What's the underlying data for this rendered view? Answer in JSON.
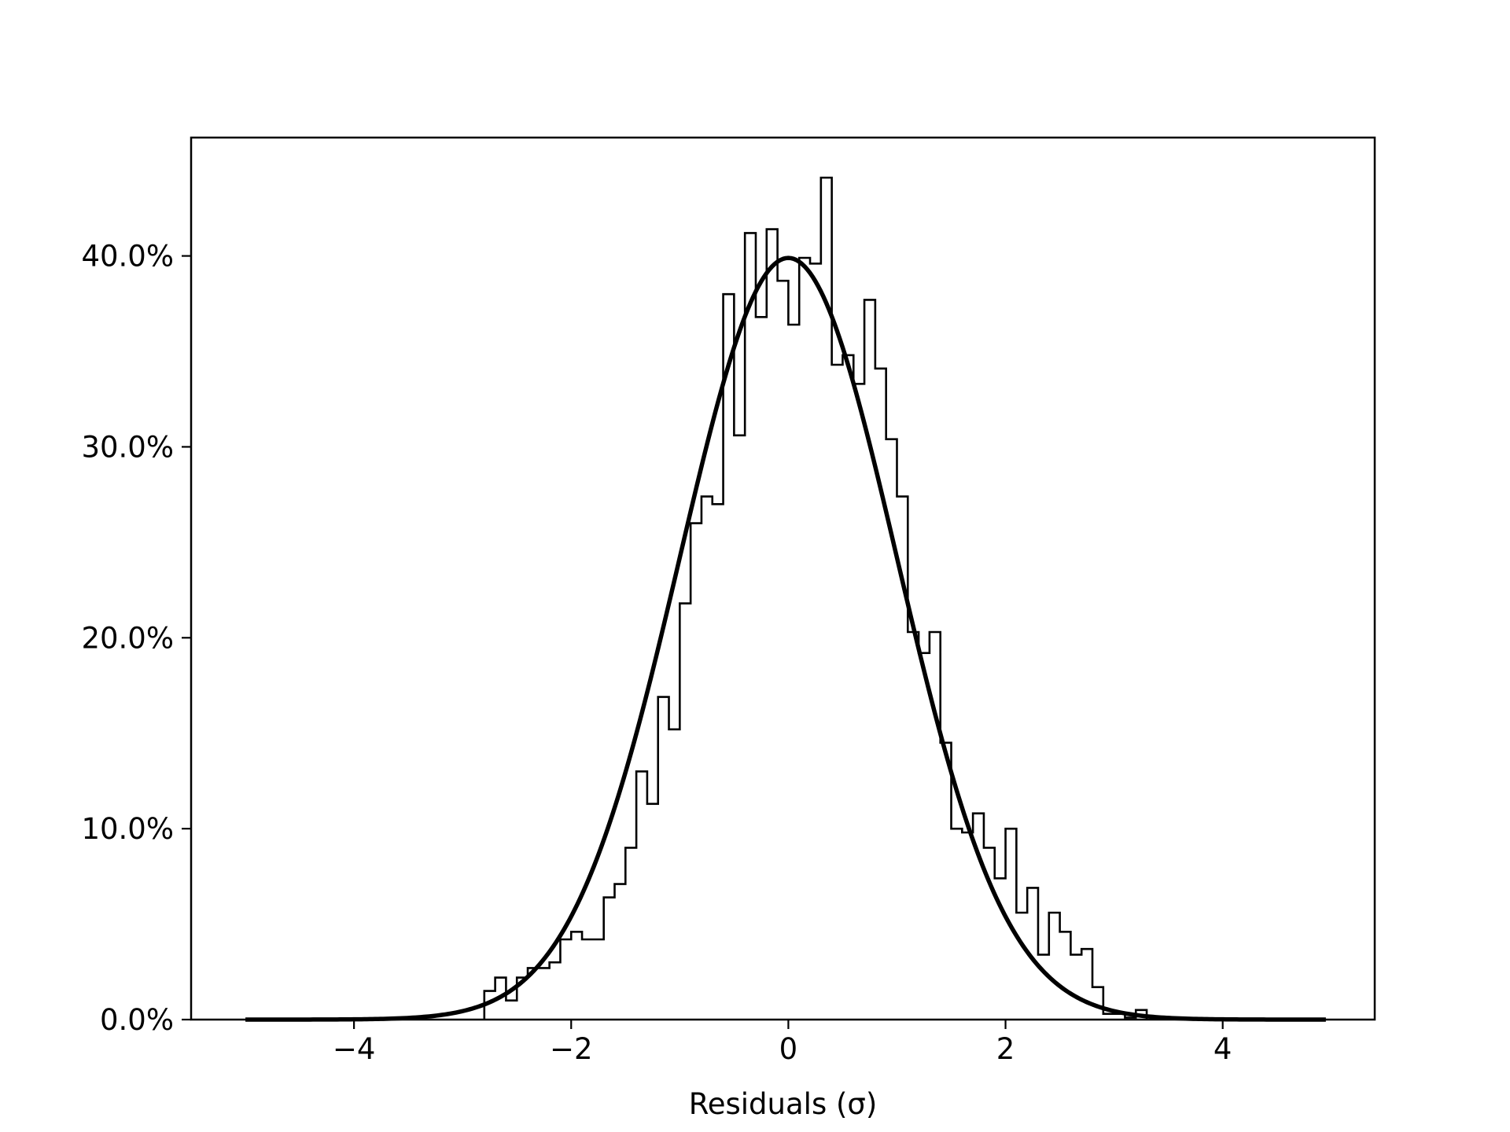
{
  "chart_data": {
    "type": "histogram",
    "title": "",
    "xlabel": "Residuals (σ)",
    "ylabel": "",
    "xlim": [
      -5.5,
      5.4
    ],
    "ylim": [
      0,
      0.462
    ],
    "grid": false,
    "legend": "none",
    "x_ticks": [
      {
        "value": -4,
        "label": "−4"
      },
      {
        "value": -2,
        "label": "−2"
      },
      {
        "value": 0,
        "label": "0"
      },
      {
        "value": 2,
        "label": "2"
      },
      {
        "value": 4,
        "label": "4"
      }
    ],
    "y_ticks": [
      {
        "value": 0.0,
        "label": "0.0%"
      },
      {
        "value": 0.1,
        "label": "10.0%"
      },
      {
        "value": 0.2,
        "label": "20.0%"
      },
      {
        "value": 0.3,
        "label": "30.0%"
      },
      {
        "value": 0.4,
        "label": "40.0%"
      }
    ],
    "histogram": {
      "style": "step",
      "color": "#000000",
      "bin_start": -2.8,
      "bin_width": 0.1,
      "densities": [
        0.015,
        0.022,
        0.01,
        0.022,
        0.027,
        0.027,
        0.03,
        0.042,
        0.046,
        0.042,
        0.042,
        0.064,
        0.071,
        0.09,
        0.13,
        0.113,
        0.169,
        0.152,
        0.218,
        0.26,
        0.274,
        0.27,
        0.38,
        0.306,
        0.412,
        0.368,
        0.414,
        0.387,
        0.364,
        0.399,
        0.396,
        0.441,
        0.343,
        0.348,
        0.333,
        0.377,
        0.341,
        0.304,
        0.274,
        0.203,
        0.192,
        0.203,
        0.145,
        0.1,
        0.098,
        0.108,
        0.09,
        0.074,
        0.1,
        0.056,
        0.069,
        0.034,
        0.056,
        0.046,
        0.034,
        0.037,
        0.017,
        0.003,
        0.003,
        0.001,
        0.005
      ]
    },
    "curve": {
      "type": "normal_pdf",
      "mean": 0,
      "std": 1,
      "x_range": [
        -5.0,
        4.95
      ],
      "color": "#000000"
    }
  }
}
